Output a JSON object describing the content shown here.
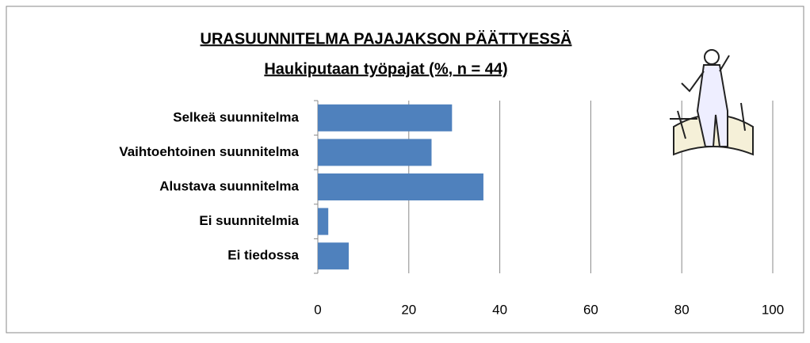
{
  "chart_data": {
    "type": "barh",
    "title": "URASUUNNITELMA PAJAJAKSON PÄÄTTYESSÄ",
    "subtitle": "Haukiputaan työpajat (%,  n = 44)",
    "categories": [
      "Selkeä suunnitelma",
      "Vaihtoehtoinen suunnitelma",
      "Alustava suunnitelma",
      "Ei suunnitelmia",
      "Ei tiedossa"
    ],
    "values": [
      29.5,
      25,
      36.4,
      2.3,
      6.8
    ],
    "color": "#4f81bd",
    "xlim": [
      0,
      100
    ],
    "xticks": [
      0,
      20,
      40,
      60,
      80,
      100
    ],
    "grid": true
  }
}
